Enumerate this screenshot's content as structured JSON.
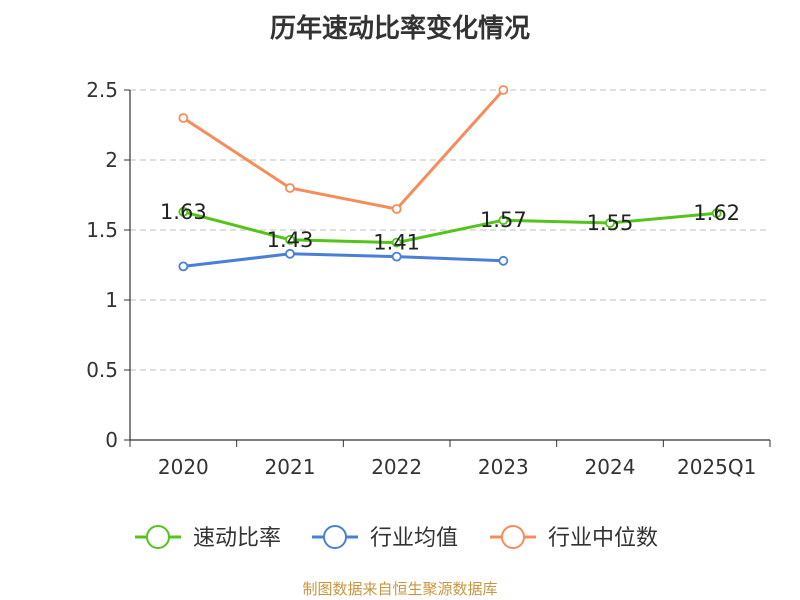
{
  "title": "历年速动比率变化情况",
  "source": "制图数据来自恒生聚源数据库",
  "colors": {
    "speed_ratio": "#52c41a",
    "industry_avg": "#4a7fd8",
    "industry_median": "#f58d58",
    "source": "#c8963e",
    "grid": "#cccccc",
    "axis": "#333333"
  },
  "chart_data": {
    "type": "line",
    "title": "历年速动比率变化情况",
    "categories": [
      "2020",
      "2021",
      "2022",
      "2023",
      "2024",
      "2025Q1"
    ],
    "ylim": [
      0,
      2.5
    ],
    "yticks": [
      "0",
      "0.5",
      "1",
      "1.5",
      "2",
      "2.5"
    ],
    "grid": true,
    "legend_position": "bottom",
    "series": [
      {
        "name": "速动比率",
        "color": "#52c41a",
        "values": [
          1.63,
          1.43,
          1.41,
          1.57,
          1.55,
          1.62
        ],
        "labels": [
          "1.63",
          "1.43",
          "1.41",
          "1.57",
          "1.55",
          "1.62"
        ]
      },
      {
        "name": "行业均值",
        "color": "#4a7fd8",
        "values": [
          1.24,
          1.33,
          1.31,
          1.28,
          null,
          null
        ]
      },
      {
        "name": "行业中位数",
        "color": "#f58d58",
        "values": [
          2.3,
          1.8,
          1.65,
          2.5,
          null,
          null
        ]
      }
    ]
  }
}
